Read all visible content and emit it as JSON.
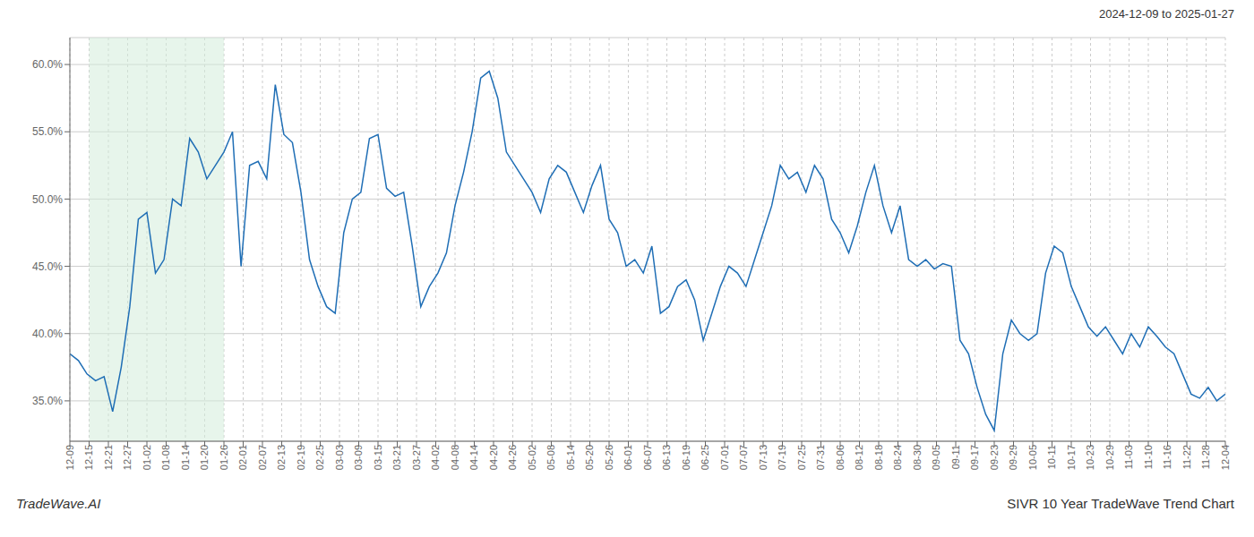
{
  "chart_data": {
    "type": "line",
    "title": "SIVR 10 Year TradeWave Trend Chart",
    "subtitle": "2024-12-09 to 2025-01-27",
    "annotations": [
      "TradeWave.AI"
    ],
    "color": "#1f6eb5",
    "grid": true,
    "shaded": {
      "x": [
        2.25,
        18.0
      ],
      "color": "#d4edda"
    },
    "xlim": [
      0,
      135
    ],
    "ylim": [
      32.0,
      62.0
    ],
    "yticks": [
      {
        "value": 35.0,
        "label": "35.0%"
      },
      {
        "value": 40.0,
        "label": "40.0%"
      },
      {
        "value": 45.0,
        "label": "45.0%"
      },
      {
        "value": 50.0,
        "label": "50.0%"
      },
      {
        "value": 55.0,
        "label": "55.0%"
      },
      {
        "value": 60.0,
        "label": "60.0%"
      }
    ],
    "xticks": [
      {
        "value": 0,
        "label": "12-09"
      },
      {
        "value": 2.25,
        "label": "12-15"
      },
      {
        "value": 4.5,
        "label": "12-21"
      },
      {
        "value": 6.75,
        "label": "12-27"
      },
      {
        "value": 9,
        "label": "01-02"
      },
      {
        "value": 11.25,
        "label": "01-08"
      },
      {
        "value": 13.5,
        "label": "01-14"
      },
      {
        "value": 15.75,
        "label": "01-20"
      },
      {
        "value": 18,
        "label": "01-26"
      },
      {
        "value": 20.25,
        "label": "02-01"
      },
      {
        "value": 22.5,
        "label": "02-07"
      },
      {
        "value": 24.75,
        "label": "02-13"
      },
      {
        "value": 27,
        "label": "02-19"
      },
      {
        "value": 29.25,
        "label": "02-25"
      },
      {
        "value": 31.5,
        "label": "03-03"
      },
      {
        "value": 33.75,
        "label": "03-09"
      },
      {
        "value": 36,
        "label": "03-15"
      },
      {
        "value": 38.25,
        "label": "03-21"
      },
      {
        "value": 40.5,
        "label": "03-27"
      },
      {
        "value": 42.75,
        "label": "04-02"
      },
      {
        "value": 45,
        "label": "04-08"
      },
      {
        "value": 47.25,
        "label": "04-14"
      },
      {
        "value": 49.5,
        "label": "04-20"
      },
      {
        "value": 51.75,
        "label": "04-26"
      },
      {
        "value": 54,
        "label": "05-02"
      },
      {
        "value": 56.25,
        "label": "05-08"
      },
      {
        "value": 58.5,
        "label": "05-14"
      },
      {
        "value": 60.75,
        "label": "05-20"
      },
      {
        "value": 63,
        "label": "05-26"
      },
      {
        "value": 65.25,
        "label": "06-01"
      },
      {
        "value": 67.5,
        "label": "06-07"
      },
      {
        "value": 69.75,
        "label": "06-13"
      },
      {
        "value": 72,
        "label": "06-19"
      },
      {
        "value": 74.25,
        "label": "06-25"
      },
      {
        "value": 76.5,
        "label": "07-01"
      },
      {
        "value": 78.75,
        "label": "07-07"
      },
      {
        "value": 81,
        "label": "07-13"
      },
      {
        "value": 83.25,
        "label": "07-19"
      },
      {
        "value": 85.5,
        "label": "07-25"
      },
      {
        "value": 87.75,
        "label": "07-31"
      },
      {
        "value": 90,
        "label": "08-06"
      },
      {
        "value": 92.25,
        "label": "08-12"
      },
      {
        "value": 94.5,
        "label": "08-18"
      },
      {
        "value": 96.75,
        "label": "08-24"
      },
      {
        "value": 99,
        "label": "08-30"
      },
      {
        "value": 101.25,
        "label": "09-05"
      },
      {
        "value": 103.5,
        "label": "09-11"
      },
      {
        "value": 105.75,
        "label": "09-17"
      },
      {
        "value": 108,
        "label": "09-23"
      },
      {
        "value": 110.25,
        "label": "09-29"
      },
      {
        "value": 112.5,
        "label": "10-05"
      },
      {
        "value": 114.75,
        "label": "10-11"
      },
      {
        "value": 117,
        "label": "10-17"
      },
      {
        "value": 119.25,
        "label": "10-23"
      },
      {
        "value": 121.5,
        "label": "10-29"
      },
      {
        "value": 123.75,
        "label": "11-03"
      },
      {
        "value": 126,
        "label": "11-10"
      },
      {
        "value": 128.25,
        "label": "11-16"
      },
      {
        "value": 130.5,
        "label": "11-22"
      },
      {
        "value": 132.75,
        "label": "11-28"
      },
      {
        "value": 135,
        "label": "12-04"
      }
    ],
    "x": [
      0,
      1,
      2,
      3,
      4,
      5,
      6,
      7,
      8,
      9,
      10,
      11,
      12,
      13,
      14,
      15,
      16,
      17,
      18,
      19,
      20,
      21,
      22,
      23,
      24,
      25,
      26,
      27,
      28,
      29,
      30,
      31,
      32,
      33,
      34,
      35,
      36,
      37,
      38,
      39,
      40,
      41,
      42,
      43,
      44,
      45,
      46,
      47,
      48,
      49,
      50,
      51,
      52,
      53,
      54,
      55,
      56,
      57,
      58,
      59,
      60,
      61,
      62,
      63,
      64,
      65,
      66,
      67,
      68,
      69,
      70,
      71,
      72,
      73,
      74,
      75,
      76,
      77,
      78,
      79,
      80,
      81,
      82,
      83,
      84,
      85,
      86,
      87,
      88,
      89,
      90,
      91,
      92,
      93,
      94,
      95,
      96,
      97,
      98,
      99,
      100,
      101,
      102,
      103,
      104,
      105,
      106,
      107,
      108,
      109,
      110,
      111,
      112,
      113,
      114,
      115,
      116,
      117,
      118,
      119,
      120,
      121,
      122,
      123,
      124,
      125,
      126,
      127,
      128,
      129,
      130,
      131,
      132,
      133,
      134,
      135
    ],
    "values": [
      38.5,
      38.0,
      37.0,
      36.5,
      36.8,
      34.2,
      37.5,
      42.0,
      48.5,
      49.0,
      44.5,
      45.5,
      50.0,
      49.5,
      54.5,
      53.5,
      51.5,
      52.5,
      53.5,
      55.0,
      45.0,
      52.5,
      52.8,
      51.5,
      58.5,
      54.8,
      54.2,
      50.5,
      45.5,
      43.5,
      42.0,
      41.5,
      47.5,
      50.0,
      50.5,
      54.5,
      54.8,
      50.8,
      50.2,
      50.5,
      46.5,
      42.0,
      43.5,
      44.5,
      46.0,
      49.5,
      52.0,
      55.0,
      59.0,
      59.5,
      57.5,
      53.5,
      52.5,
      51.5,
      50.5,
      49.0,
      51.5,
      52.5,
      52.0,
      50.5,
      49.0,
      51.0,
      52.5,
      48.5,
      47.5,
      45.0,
      45.5,
      44.5,
      46.5,
      41.5,
      42.0,
      43.5,
      44.0,
      42.5,
      39.5,
      41.5,
      43.5,
      45.0,
      44.5,
      43.5,
      45.5,
      47.5,
      49.5,
      52.5,
      51.5,
      52.0,
      50.5,
      52.5,
      51.5,
      48.5,
      47.5,
      46.0,
      48.0,
      50.5,
      52.5,
      49.5,
      47.5,
      49.5,
      45.5,
      45.0,
      45.5,
      44.8,
      45.2,
      45.0,
      39.5,
      38.5,
      36.0,
      34.0,
      32.8,
      38.5,
      41.0,
      40.0,
      39.5,
      40.0,
      44.5,
      46.5,
      46.0,
      43.5,
      42.0,
      40.5,
      39.8,
      40.5,
      39.5,
      38.5,
      40.0,
      39.0,
      40.5,
      39.8,
      39.0,
      38.5,
      37.0,
      35.5,
      35.2,
      36.0,
      35.0,
      35.5
    ]
  }
}
